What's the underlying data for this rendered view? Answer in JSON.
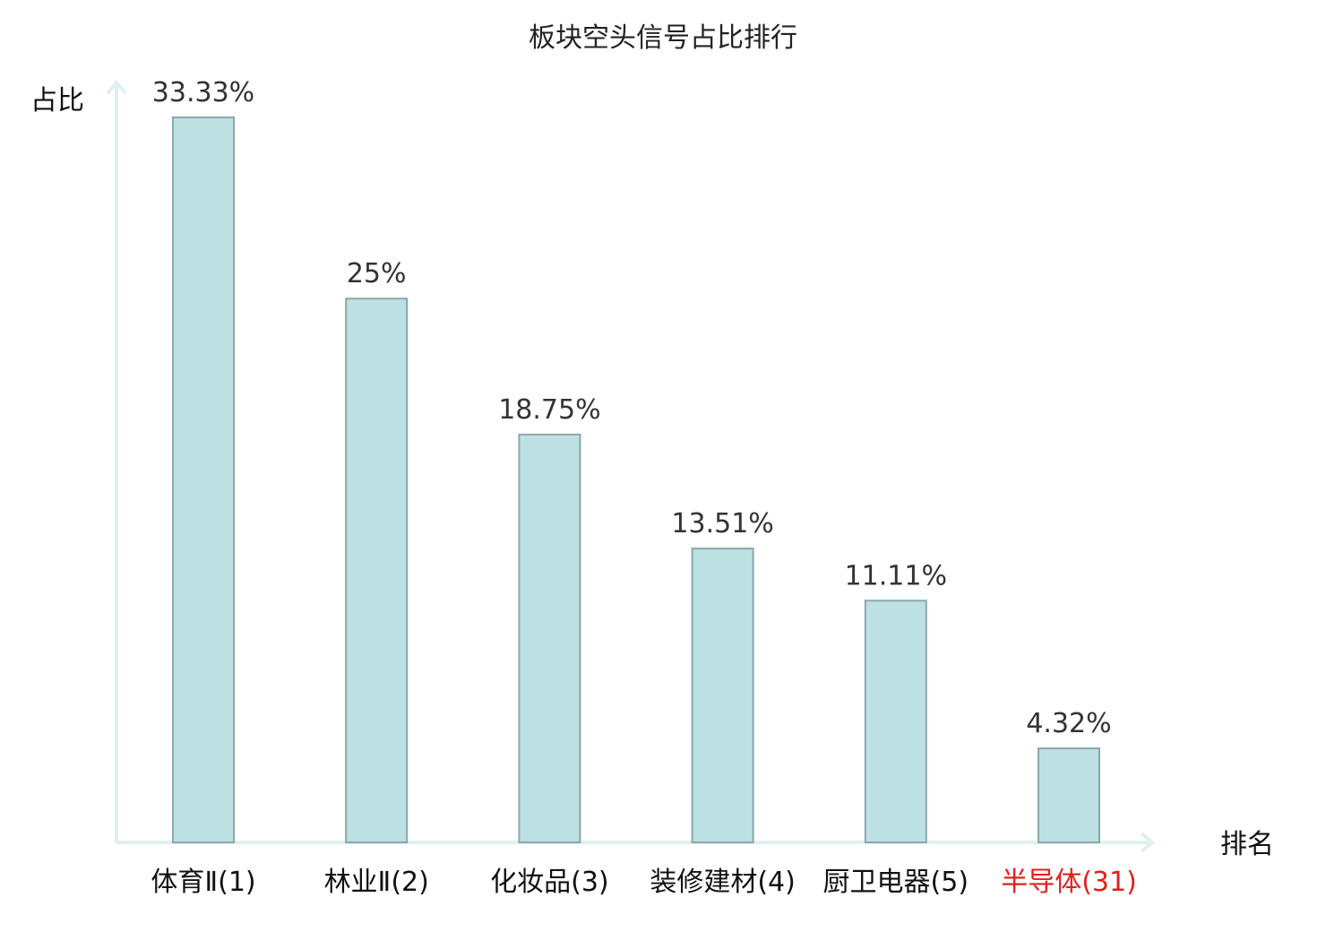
{
  "chart_data": {
    "type": "bar",
    "title": "板块空头信号占比排行",
    "ylabel": "占比",
    "xlabel": "排名",
    "categories": [
      "体育Ⅱ(1)",
      "林业Ⅱ(2)",
      "化妆品(3)",
      "装修建材(4)",
      "厨卫电器(5)",
      "半导体(31)"
    ],
    "values": [
      33.33,
      25,
      18.75,
      13.51,
      11.11,
      4.32
    ],
    "value_labels": [
      "33.33%",
      "25%",
      "18.75%",
      "13.51%",
      "11.11%",
      "4.32%"
    ],
    "highlight_index": 5,
    "ylim": [
      0,
      33.33
    ],
    "grid": false,
    "legend": "none",
    "colors": {
      "bar_fill": "#bde0e3",
      "bar_stroke": "#8aa8ab",
      "axis": "#dff1ef",
      "highlight_label": "#e0201b",
      "label": "#111111"
    }
  }
}
